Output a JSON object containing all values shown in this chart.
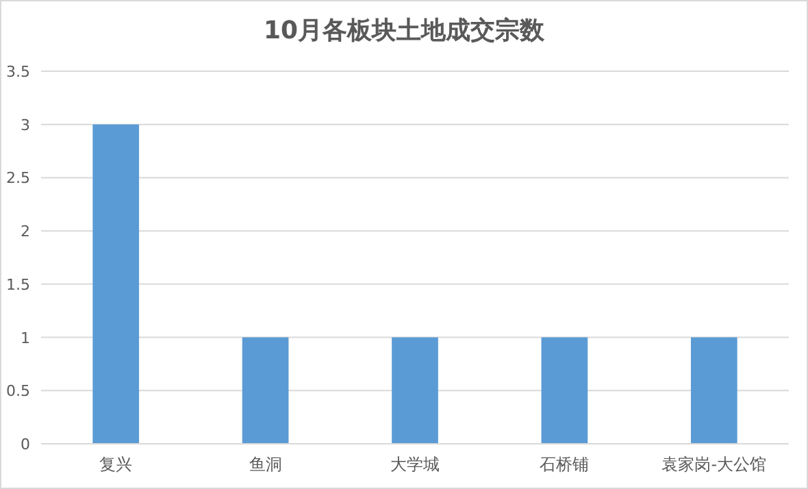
{
  "chart_data": {
    "type": "bar",
    "title": "10月各板块土地成交宗数",
    "categories": [
      "复兴",
      "鱼洞",
      "大学城",
      "石桥铺",
      "袁家岗-大公馆"
    ],
    "values": [
      3,
      1,
      1,
      1,
      1
    ],
    "color": "#5b9bd5",
    "ylim": [
      0,
      3.5
    ],
    "yticks": [
      0,
      0.5,
      1,
      1.5,
      2,
      2.5,
      3,
      3.5
    ],
    "grid": "y"
  }
}
